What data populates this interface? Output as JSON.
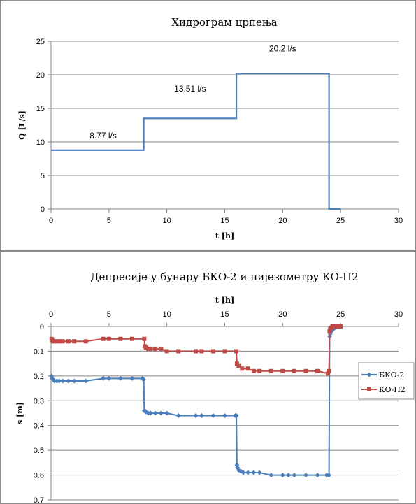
{
  "chart_data": [
    {
      "type": "line",
      "title": "Хидрограм црпења",
      "xlabel": "t [h]",
      "ylabel": "Q [L/s]",
      "xlim": [
        0,
        30
      ],
      "ylim": [
        0,
        25
      ],
      "xticks": [
        "0",
        "5",
        "10",
        "15",
        "20",
        "25",
        "30"
      ],
      "yticks": [
        "0",
        "5",
        "10",
        "15",
        "20",
        "25"
      ],
      "grid": "horizontal",
      "series": [
        {
          "color": "#4a7ebb",
          "x": [
            0,
            8,
            8,
            16,
            16,
            24,
            24,
            25
          ],
          "y": [
            8.77,
            8.77,
            13.51,
            13.51,
            20.2,
            20.2,
            0,
            0
          ]
        }
      ],
      "annotations": [
        {
          "text": "8.77 l/s",
          "x": 4.5,
          "y": 10.5
        },
        {
          "text": "13.51 l/s",
          "x": 12,
          "y": 17.5
        },
        {
          "text": "20.2 l/s",
          "x": 20,
          "y": 23.5
        }
      ]
    },
    {
      "type": "line",
      "title": "Депресије у бунару БКО-2 и пијезометру КО-П2",
      "xlabel": "t [h]",
      "ylabel": "s [m]",
      "xlim": [
        0,
        30
      ],
      "ylim": [
        0,
        0.7
      ],
      "y_inverted": true,
      "x_axis_position": "top",
      "xticks": [
        "0",
        "5",
        "10",
        "15",
        "20",
        "25",
        "30"
      ],
      "yticks": [
        "0",
        "0.1",
        "0.2",
        "0.3",
        "0.4",
        "0.5",
        "0.6",
        "0.7"
      ],
      "grid": "horizontal",
      "legend_position": "right",
      "series": [
        {
          "name": "БКО-2",
          "color": "#4a7ebb",
          "marker": "diamond",
          "x": [
            0.05,
            0.1,
            0.2,
            0.3,
            0.5,
            0.7,
            1,
            1.5,
            2,
            3,
            4.5,
            5,
            6,
            7,
            7.9,
            8.0,
            8.05,
            8.1,
            8.2,
            8.4,
            8.6,
            9,
            9.5,
            10,
            11,
            12.5,
            13,
            14,
            15,
            15.9,
            16.0,
            16.05,
            16.1,
            16.2,
            16.4,
            16.6,
            17,
            17.5,
            18,
            19,
            20,
            20.5,
            21,
            22,
            23,
            23.8,
            24.0,
            24.05,
            24.1,
            24.2,
            24.4
          ],
          "y": [
            0.2,
            0.21,
            0.215,
            0.22,
            0.22,
            0.22,
            0.22,
            0.22,
            0.22,
            0.22,
            0.21,
            0.21,
            0.21,
            0.21,
            0.21,
            0.215,
            0.34,
            0.34,
            0.345,
            0.35,
            0.35,
            0.35,
            0.35,
            0.35,
            0.36,
            0.36,
            0.36,
            0.36,
            0.36,
            0.36,
            0.36,
            0.56,
            0.57,
            0.58,
            0.585,
            0.59,
            0.59,
            0.59,
            0.59,
            0.6,
            0.6,
            0.6,
            0.6,
            0.6,
            0.6,
            0.6,
            0.6,
            0.04,
            0.03,
            0.02,
            0.01
          ]
        },
        {
          "name": "КО-П2",
          "color": "#be4b48",
          "marker": "square",
          "x": [
            0.05,
            0.1,
            0.2,
            0.3,
            0.5,
            0.7,
            1,
            1.5,
            2,
            3,
            4.5,
            5,
            6,
            7,
            8.05,
            8.1,
            8.2,
            8.4,
            8.6,
            9,
            9.5,
            10,
            11,
            12.5,
            13,
            14,
            15,
            16.0,
            16.05,
            16.2,
            16.5,
            17,
            17.5,
            18,
            19,
            20,
            21,
            22,
            23,
            23.9,
            24.0,
            24.05,
            24.1,
            24.2,
            24.3,
            24.4,
            24.5,
            24.7,
            25.0
          ],
          "y": [
            0.05,
            0.055,
            0.06,
            0.06,
            0.06,
            0.06,
            0.06,
            0.06,
            0.06,
            0.06,
            0.05,
            0.05,
            0.05,
            0.05,
            0.05,
            0.08,
            0.085,
            0.09,
            0.09,
            0.09,
            0.09,
            0.1,
            0.1,
            0.1,
            0.1,
            0.1,
            0.1,
            0.1,
            0.15,
            0.16,
            0.17,
            0.17,
            0.18,
            0.18,
            0.18,
            0.18,
            0.18,
            0.18,
            0.18,
            0.19,
            0.18,
            0.02,
            0.01,
            0.005,
            0,
            0,
            0,
            0,
            0
          ]
        }
      ]
    }
  ]
}
